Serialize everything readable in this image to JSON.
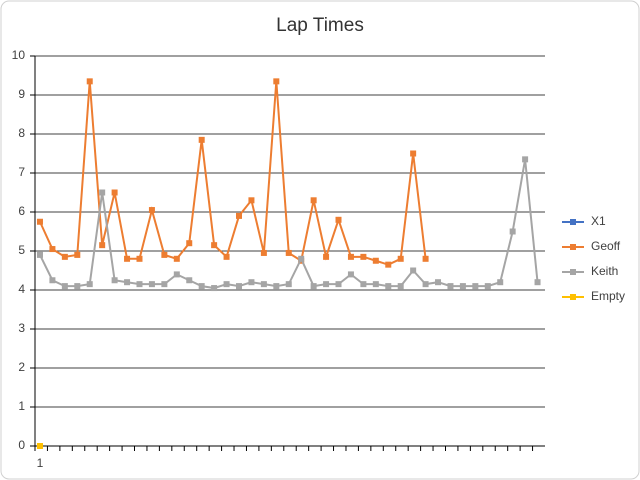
{
  "chart_data": {
    "type": "line",
    "title": "Lap Times",
    "categories": [
      "1",
      null,
      null,
      null,
      null,
      null,
      null,
      null,
      null,
      null,
      null,
      null,
      null,
      null,
      null,
      null,
      null,
      null,
      null,
      null,
      null,
      null,
      null,
      null,
      null,
      null,
      null,
      null,
      null,
      null,
      null,
      null,
      null,
      null,
      null,
      null,
      null,
      null,
      null,
      null,
      null
    ],
    "series": [
      {
        "name": "X1",
        "color": "#4472c4",
        "values": [
          null,
          null,
          null,
          null,
          null,
          null,
          null,
          null,
          null,
          null,
          null,
          null,
          null,
          null,
          null,
          null,
          null,
          null,
          null,
          null,
          null,
          null,
          null,
          null,
          null,
          null,
          null,
          null,
          null,
          null,
          null,
          null,
          null,
          null,
          null,
          null,
          null,
          null,
          null,
          null,
          null
        ]
      },
      {
        "name": "Geoff",
        "color": "#ed7d31",
        "values": [
          5.75,
          5.05,
          4.85,
          4.9,
          9.35,
          5.15,
          6.5,
          4.8,
          4.8,
          6.05,
          4.9,
          4.8,
          5.2,
          7.85,
          5.15,
          4.85,
          5.9,
          6.3,
          4.95,
          9.35,
          4.95,
          4.75,
          6.3,
          4.85,
          5.8,
          4.85,
          4.85,
          4.75,
          4.65,
          4.8,
          7.5,
          4.8,
          null,
          null,
          null,
          null,
          null,
          null,
          null,
          null,
          null
        ]
      },
      {
        "name": "Keith",
        "color": "#a5a5a5",
        "values": [
          4.9,
          4.25,
          4.1,
          4.1,
          4.15,
          6.5,
          4.25,
          4.2,
          4.15,
          4.15,
          4.15,
          4.4,
          4.25,
          4.1,
          4.05,
          4.15,
          4.1,
          4.2,
          4.15,
          4.1,
          4.15,
          4.8,
          4.1,
          4.15,
          4.15,
          4.4,
          4.15,
          4.15,
          4.1,
          4.1,
          4.5,
          4.15,
          4.2,
          4.1,
          4.1,
          4.1,
          4.1,
          4.2,
          5.5,
          7.35,
          4.2
        ]
      },
      {
        "name": "Empty",
        "color": "#ffc000",
        "values": [
          0,
          null,
          null,
          null,
          null,
          null,
          null,
          null,
          null,
          null,
          null,
          null,
          null,
          null,
          null,
          null,
          null,
          null,
          null,
          null,
          null,
          null,
          null,
          null,
          null,
          null,
          null,
          null,
          null,
          null,
          null,
          null,
          null,
          null,
          null,
          null,
          null,
          null,
          null,
          null,
          null
        ]
      }
    ],
    "ylim": [
      0,
      10
    ],
    "yticks": [
      0,
      1,
      2,
      3,
      4,
      5,
      6,
      7,
      8,
      9,
      10
    ],
    "grid": true,
    "legend": "right"
  }
}
